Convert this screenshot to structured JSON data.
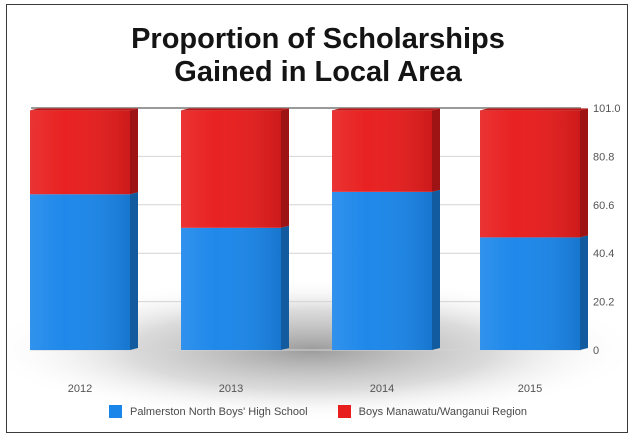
{
  "chart_data": {
    "type": "bar",
    "stacked": true,
    "title_lines": [
      "Proportion of Scholarships",
      "Gained in Local Area"
    ],
    "categories": [
      "2012",
      "2013",
      "2014",
      "2015"
    ],
    "series": [
      {
        "name": "Palmerston North Boys' High School",
        "color": "#1a86ea",
        "values": [
          65,
          51,
          66,
          47
        ]
      },
      {
        "name": "Boys Manawatu/Wanganui Region",
        "color": "#e81d1d",
        "values": [
          35,
          49,
          34,
          53
        ]
      }
    ],
    "yticks": [
      "0",
      "20.2",
      "40.4",
      "60.6",
      "80.8",
      "101.0"
    ],
    "ylim": [
      0,
      101
    ],
    "grid": true,
    "legend_position": "bottom"
  }
}
